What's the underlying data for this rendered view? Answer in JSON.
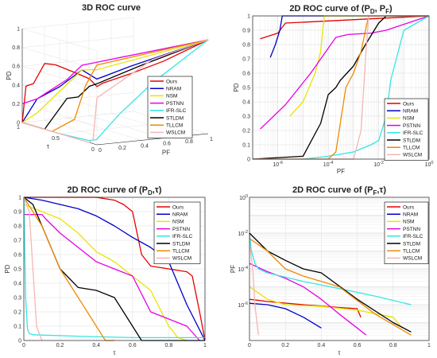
{
  "series_styles": [
    {
      "name": "Ours",
      "color": "#e60000"
    },
    {
      "name": "NRAM",
      "color": "#0000cc"
    },
    {
      "name": "NSM",
      "color": "#e6e600"
    },
    {
      "name": "PSTNN",
      "color": "#e600e6"
    },
    {
      "name": "IFR-SLC",
      "color": "#33e6e6"
    },
    {
      "name": "STLDM",
      "color": "#000000"
    },
    {
      "name": "TLLCM",
      "color": "#f08a00"
    },
    {
      "name": "WSLCM",
      "color": "#f5b5b5"
    }
  ],
  "chart_data": [
    {
      "id": "roc3d",
      "type": "line",
      "title": "3D ROC curve",
      "xlabel": "PF",
      "ylabel": "τ",
      "zlabel": "PD",
      "pf_ticks": [
        "0",
        "0.2",
        "0.4",
        "0.6",
        "0.8",
        "1"
      ],
      "tau_ticks": [
        "0",
        "0.5",
        "1"
      ],
      "pd_ticks": [
        "0",
        "0.2",
        "0.4",
        "0.6",
        "0.8",
        "1"
      ],
      "legend_position": "right",
      "note": "series are (PF, tau, PD) triplets",
      "series": [
        {
          "name": "Ours",
          "points": [
            [
              0,
              1,
              0
            ],
            [
              0,
              0.95,
              0.4
            ],
            [
              0,
              0.85,
              0.45
            ],
            [
              0,
              0.7,
              0.7
            ],
            [
              0,
              0.55,
              0.72
            ],
            [
              0,
              0.3,
              0.7
            ],
            [
              0,
              0.1,
              0.68
            ],
            [
              0,
              0,
              0.62
            ],
            [
              0.05,
              0,
              0.65
            ],
            [
              0.3,
              0,
              0.72
            ],
            [
              0.6,
              0,
              0.82
            ],
            [
              1,
              0,
              1
            ]
          ]
        },
        {
          "name": "NRAM",
          "points": [
            [
              0,
              1,
              0
            ],
            [
              0,
              0.8,
              0.3
            ],
            [
              0,
              0.5,
              0.5
            ],
            [
              0,
              0.2,
              0.75
            ],
            [
              0,
              0,
              0.7
            ],
            [
              0.3,
              0,
              0.8
            ],
            [
              1,
              0,
              1
            ]
          ]
        },
        {
          "name": "NSM",
          "points": [
            [
              0,
              1,
              0
            ],
            [
              0,
              0.8,
              0.15
            ],
            [
              0,
              0.6,
              0.35
            ],
            [
              0,
              0.4,
              0.55
            ],
            [
              0,
              0.2,
              0.75
            ],
            [
              0,
              0,
              0.8
            ],
            [
              1,
              0,
              1
            ]
          ]
        },
        {
          "name": "PSTNN",
          "points": [
            [
              0,
              1,
              0.2
            ],
            [
              0,
              0.8,
              0.3
            ],
            [
              0,
              0.6,
              0.45
            ],
            [
              0,
              0.4,
              0.6
            ],
            [
              0,
              0.2,
              0.8
            ],
            [
              0,
              0,
              0.88
            ],
            [
              1,
              0,
              1
            ]
          ]
        },
        {
          "name": "IFR-SLC",
          "points": [
            [
              0,
              1,
              0
            ],
            [
              0,
              0.5,
              0
            ],
            [
              0,
              0.1,
              0.02
            ],
            [
              0.01,
              0.02,
              0.05
            ],
            [
              0.2,
              0,
              0.3
            ],
            [
              0.5,
              0,
              0.6
            ],
            [
              1,
              0,
              1
            ]
          ]
        },
        {
          "name": "STLDM",
          "points": [
            [
              0,
              1,
              0
            ],
            [
              0,
              0.7,
              0
            ],
            [
              0,
              0.55,
              0.2
            ],
            [
              0,
              0.4,
              0.4
            ],
            [
              0,
              0.25,
              0.45
            ],
            [
              0,
              0.1,
              0.6
            ],
            [
              0,
              0,
              0.65
            ],
            [
              0.4,
              0,
              0.8
            ],
            [
              1,
              0,
              1
            ]
          ]
        },
        {
          "name": "TLLCM",
          "points": [
            [
              0,
              1,
              0
            ],
            [
              0,
              0.6,
              0
            ],
            [
              0,
              0.3,
              0.2
            ],
            [
              0,
              0.15,
              0.6
            ],
            [
              0,
              0,
              0.85
            ],
            [
              1,
              0,
              1
            ]
          ]
        },
        {
          "name": "WSLCM",
          "points": [
            [
              0,
              1,
              0
            ],
            [
              0,
              0.1,
              0
            ],
            [
              0,
              0.05,
              0.05
            ],
            [
              0,
              0,
              0.5
            ],
            [
              0.5,
              0,
              0.85
            ],
            [
              1,
              0,
              1
            ]
          ]
        }
      ]
    },
    {
      "id": "roc_pd_pf",
      "type": "line",
      "title": "2D ROC curve of (P",
      "title_sub1": "D",
      "title_mid": ", P",
      "title_sub2": "F",
      "title_end": ")",
      "xlabel": "PF",
      "ylabel": "PD",
      "xscale": "log",
      "xlim": [
        1e-07,
        1
      ],
      "ylim": [
        0,
        1
      ],
      "x_ticks": [
        {
          "v": 1e-06,
          "b": "10",
          "e": "-6"
        },
        {
          "v": 0.0001,
          "b": "10",
          "e": "-4"
        },
        {
          "v": 0.01,
          "b": "10",
          "e": "-2"
        },
        {
          "v": 1,
          "b": "10",
          "e": "0"
        }
      ],
      "y_ticks": [
        "0",
        "0.1",
        "0.2",
        "0.3",
        "0.4",
        "0.5",
        "0.6",
        "0.7",
        "0.8",
        "0.9",
        "1"
      ],
      "legend_position": "bottom-right",
      "series": [
        {
          "name": "Ours",
          "x": [
            2e-07,
            1e-06,
            2e-06,
            1,
            1
          ],
          "y": [
            0.84,
            0.88,
            0.95,
            1,
            1
          ]
        },
        {
          "name": "NRAM",
          "x": [
            5e-07,
            8e-07,
            1.2e-06,
            1.5e-06,
            1
          ],
          "y": [
            0.71,
            0.8,
            0.9,
            1,
            1
          ]
        },
        {
          "name": "NSM",
          "x": [
            3e-06,
            1e-05,
            3e-05,
            5e-05,
            6e-05,
            7e-05,
            1
          ],
          "y": [
            0.3,
            0.4,
            0.6,
            0.75,
            0.9,
            1,
            1
          ]
        },
        {
          "name": "PSTNN",
          "x": [
            2e-07,
            2e-06,
            2e-05,
            0.0002,
            0.0006,
            0.005,
            0.02,
            1
          ],
          "y": [
            0.21,
            0.38,
            0.6,
            0.85,
            0.87,
            0.88,
            0.9,
            1
          ]
        },
        {
          "name": "IFR-SLC",
          "x": [
            1e-07,
            1e-05,
            0.0001,
            0.001,
            0.005,
            0.01,
            0.02,
            0.03,
            0.1,
            1
          ],
          "y": [
            0,
            0,
            0.02,
            0.05,
            0.1,
            0.13,
            0.3,
            0.55,
            0.9,
            1
          ]
        },
        {
          "name": "STLDM",
          "x": [
            1e-07,
            1e-05,
            5e-05,
            0.0001,
            0.0002,
            0.0003,
            0.001,
            0.003,
            0.01,
            0.02,
            1
          ],
          "y": [
            0,
            0.02,
            0.25,
            0.45,
            0.5,
            0.55,
            0.65,
            0.8,
            0.95,
            1,
            1
          ]
        },
        {
          "name": "TLLCM",
          "x": [
            1e-07,
            0.0001,
            0.0002,
            0.0003,
            0.0005,
            0.001,
            0.002,
            0.003,
            0.004,
            1
          ],
          "y": [
            0,
            0,
            0.05,
            0.25,
            0.5,
            0.6,
            0.75,
            0.9,
            1,
            1
          ]
        },
        {
          "name": "WSLCM",
          "x": [
            1e-07,
            0.001,
            0.002,
            0.003,
            0.004,
            1
          ],
          "y": [
            0,
            0,
            0.2,
            0.7,
            1,
            1
          ]
        }
      ]
    },
    {
      "id": "roc_pd_tau",
      "type": "line",
      "title": "2D ROC curve of (P",
      "title_sub1": "D",
      "title_mid": ",τ)",
      "title_sub2": "",
      "title_end": "",
      "xlabel": "τ",
      "ylabel": "PD",
      "xlim": [
        0,
        1
      ],
      "ylim": [
        0,
        1
      ],
      "x_ticks": [
        "0",
        "0.2",
        "0.4",
        "0.6",
        "0.8",
        "1"
      ],
      "y_ticks": [
        "0",
        "0.1",
        "0.2",
        "0.3",
        "0.4",
        "0.5",
        "0.6",
        "0.7",
        "0.8",
        "0.9",
        "1"
      ],
      "legend_position": "top-right",
      "series": [
        {
          "name": "Ours",
          "x": [
            0,
            0.4,
            0.5,
            0.55,
            0.6,
            0.65,
            0.7,
            0.8,
            0.9,
            0.93,
            0.97,
            1
          ],
          "y": [
            1,
            1,
            0.98,
            0.95,
            0.9,
            0.6,
            0.52,
            0.5,
            0.48,
            0.45,
            0.2,
            0
          ]
        },
        {
          "name": "NRAM",
          "x": [
            0,
            0.1,
            0.2,
            0.3,
            0.4,
            0.5,
            0.6,
            0.7,
            0.8,
            0.9,
            1
          ],
          "y": [
            1,
            0.98,
            0.95,
            0.92,
            0.87,
            0.8,
            0.72,
            0.65,
            0.55,
            0.25,
            0
          ]
        },
        {
          "name": "NSM",
          "x": [
            0,
            0.1,
            0.2,
            0.3,
            0.4,
            0.5,
            0.6,
            0.7,
            0.8,
            0.85,
            0.9
          ],
          "y": [
            0.95,
            0.9,
            0.85,
            0.75,
            0.62,
            0.55,
            0.45,
            0.35,
            0.1,
            0.02,
            0
          ]
        },
        {
          "name": "PSTNN",
          "x": [
            0,
            0.1,
            0.12,
            0.2,
            0.3,
            0.4,
            0.5,
            0.6,
            0.7,
            0.8,
            0.9,
            0.97
          ],
          "y": [
            0.88,
            0.88,
            0.85,
            0.75,
            0.65,
            0.55,
            0.5,
            0.45,
            0.2,
            0.15,
            0.1,
            0
          ]
        },
        {
          "name": "IFR-SLC",
          "x": [
            0,
            0.01,
            0.02,
            0.03,
            0.05,
            0.3,
            0.6,
            1
          ],
          "y": [
            1,
            0.3,
            0.08,
            0.05,
            0.04,
            0.03,
            0.02,
            0.02
          ]
        },
        {
          "name": "STLDM",
          "x": [
            0,
            0.05,
            0.1,
            0.2,
            0.3,
            0.4,
            0.5,
            0.55,
            0.6,
            0.65,
            0.7,
            1
          ],
          "y": [
            1,
            0.95,
            0.8,
            0.5,
            0.37,
            0.35,
            0.3,
            0.2,
            0.1,
            0,
            0,
            0
          ]
        },
        {
          "name": "TLLCM",
          "x": [
            0,
            0.05,
            0.1,
            0.15,
            0.2,
            0.3,
            0.4,
            0.45,
            0.5
          ],
          "y": [
            1,
            0.9,
            0.8,
            0.65,
            0.5,
            0.3,
            0.1,
            0,
            0
          ]
        },
        {
          "name": "WSLCM",
          "x": [
            0,
            0.03,
            0.05,
            0.07,
            0.1
          ],
          "y": [
            1,
            0.9,
            0.5,
            0.1,
            0
          ]
        }
      ]
    },
    {
      "id": "roc_pf_tau",
      "type": "line",
      "title": "2D ROC curve of (P",
      "title_sub1": "F",
      "title_mid": ",τ)",
      "title_sub2": "",
      "title_end": "",
      "xlabel": "τ",
      "ylabel": "PF",
      "yscale": "log",
      "xlim": [
        0,
        1
      ],
      "ylim": [
        1e-08,
        1
      ],
      "x_ticks": [
        "0",
        "0.2",
        "0.4",
        "0.6",
        "0.8",
        "1"
      ],
      "y_ticks": [
        {
          "v": 1e-06,
          "b": "10",
          "e": "-6"
        },
        {
          "v": 0.0001,
          "b": "10",
          "e": "-4"
        },
        {
          "v": 0.01,
          "b": "10",
          "e": "-2"
        },
        {
          "v": 1,
          "b": "10",
          "e": "0"
        }
      ],
      "legend_position": "top-right",
      "series": [
        {
          "name": "Ours",
          "x": [
            0,
            0.1,
            0.3,
            0.5,
            0.6,
            0.62
          ],
          "y": [
            2e-06,
            1.5e-06,
            1e-06,
            7e-07,
            6e-07,
            2e-07
          ]
        },
        {
          "name": "NRAM",
          "x": [
            0,
            0.1,
            0.2,
            0.3,
            0.4
          ],
          "y": [
            1.2e-06,
            1e-06,
            6e-07,
            2e-07,
            5e-08
          ]
        },
        {
          "name": "NSM",
          "x": [
            0,
            0.1,
            0.2,
            0.4,
            0.6,
            0.8,
            0.85
          ],
          "y": [
            1e-05,
            2e-06,
            1e-06,
            8e-07,
            5e-07,
            2e-07,
            5e-08
          ]
        },
        {
          "name": "PSTNN",
          "x": [
            0,
            0.1,
            0.2,
            0.3,
            0.4,
            0.5,
            0.6,
            0.65
          ],
          "y": [
            0.0002,
            7e-05,
            3e-05,
            1e-05,
            2e-06,
            3e-07,
            5e-08,
            2e-08
          ]
        },
        {
          "name": "IFR-SLC",
          "x": [
            0,
            0.01,
            0.02,
            0.03,
            0.05,
            0.1,
            0.3,
            0.5,
            0.7,
            0.9
          ],
          "y": [
            0.01,
            0.001,
            0.0005,
            0.0002,
            0.0001,
            6e-05,
            2e-05,
            8e-06,
            3e-06,
            1e-06
          ]
        },
        {
          "name": "STLDM",
          "x": [
            0,
            0.1,
            0.2,
            0.3,
            0.4,
            0.6,
            0.8,
            0.9
          ],
          "y": [
            0.01,
            0.001,
            0.0003,
            0.0001,
            6e-05,
            2e-06,
            1e-07,
            3e-08
          ]
        },
        {
          "name": "TLLCM",
          "x": [
            0,
            0.1,
            0.2,
            0.3,
            0.5,
            0.7,
            0.9
          ],
          "y": [
            0.005,
            0.001,
            0.0001,
            4e-05,
            1e-05,
            3e-07,
            2e-08
          ]
        },
        {
          "name": "WSLCM",
          "x": [
            0,
            0.01,
            0.02,
            0.03,
            0.05
          ],
          "y": [
            0.003,
            0.0005,
            5e-05,
            1e-06,
            2e-08
          ]
        }
      ]
    }
  ]
}
